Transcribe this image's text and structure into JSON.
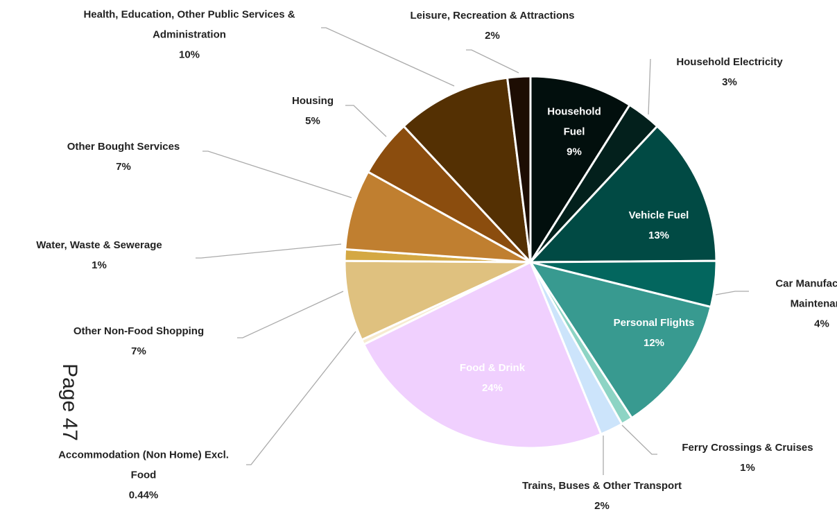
{
  "chart_data": {
    "type": "pie",
    "categories": [
      "Household Fuel",
      "Household Electricity",
      "Vehicle Fuel",
      "Car Manufacture & Maintenance",
      "Personal Flights",
      "Ferry Crossings & Cruises",
      "Trains, Buses & Other Transport",
      "Food & Drink",
      "Accommodation (Non Home) Excl. Food",
      "Other Non-Food Shopping",
      "Water, Waste & Sewerage",
      "Other Bought Services",
      "Housing",
      "Health, Education, Other Public Services & Administration",
      "Leisure, Recreation & Attractions"
    ],
    "values": [
      9,
      3,
      13,
      4,
      12,
      1,
      2,
      24,
      0.44,
      7,
      1,
      7,
      5,
      10,
      2
    ],
    "value_labels": [
      "9%",
      "3%",
      "13%",
      "4%",
      "12%",
      "1%",
      "2%",
      "24%",
      "0.44%",
      "7%",
      "1%",
      "7%",
      "5%",
      "10%",
      "2%"
    ],
    "colors": [
      "#020f0d",
      "#03201c",
      "#014a44",
      "#03665e",
      "#389a90",
      "#8dd4c4",
      "#cce4fb",
      "#f0d0fe",
      "#f6ebd1",
      "#dfc17f",
      "#d4a843",
      "#c07f30",
      "#8b4d0e",
      "#543003",
      "#1d0d03"
    ],
    "page_label": "Page 47"
  }
}
